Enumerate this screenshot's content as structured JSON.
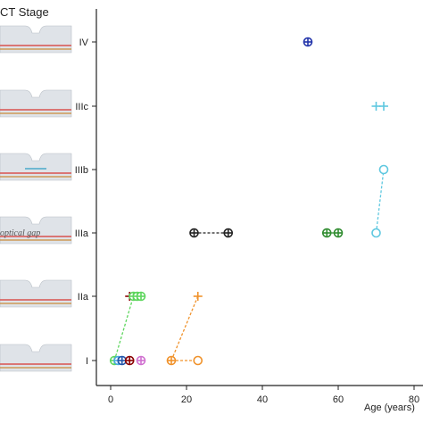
{
  "legend_title": "CT Stage",
  "optical_gap_label": "optical gap",
  "thumbnail_stages": [
    "IV",
    "IIIc",
    "IIIb",
    "IIIa",
    "IIa",
    "I"
  ],
  "colors": {
    "axis": "#222222",
    "thumb_fill": "#dfe3e8",
    "thumb_red": "#d9534f",
    "thumb_orange": "#c98a3a",
    "thumb_blue": "#4aa9c9"
  },
  "chart_data": {
    "type": "scatter",
    "xlabel": "Age (years)",
    "ylabel": "",
    "xlim": [
      -3,
      82
    ],
    "x_ticks": [
      0,
      20,
      40,
      60,
      80
    ],
    "y_categories": [
      "I",
      "IIa",
      "IIIa",
      "IIIb",
      "IIIc",
      "IV"
    ],
    "grid": false,
    "points": [
      {
        "x": 52,
        "y": "IV",
        "color": "#2233aa",
        "marker": "circle-plus"
      },
      {
        "x": 70,
        "y": "IIIc",
        "color": "#5fc8e0",
        "marker": "plus"
      },
      {
        "x": 72,
        "y": "IIIc",
        "color": "#5fc8e0",
        "marker": "plus"
      },
      {
        "x": 72,
        "y": "IIIb",
        "color": "#5fc8e0",
        "marker": "circle"
      },
      {
        "x": 70,
        "y": "IIIa",
        "color": "#5fc8e0",
        "marker": "circle"
      },
      {
        "x": 22,
        "y": "IIIa",
        "color": "#222222",
        "marker": "circle-plus"
      },
      {
        "x": 31,
        "y": "IIIa",
        "color": "#222222",
        "marker": "circle-plus"
      },
      {
        "x": 57,
        "y": "IIIa",
        "color": "#2e8b2e",
        "marker": "circle-plus"
      },
      {
        "x": 60,
        "y": "IIIa",
        "color": "#2e8b2e",
        "marker": "circle-plus"
      },
      {
        "x": 5,
        "y": "IIa",
        "color": "#8b0000",
        "marker": "plus"
      },
      {
        "x": 6,
        "y": "IIa",
        "color": "#5ed65e",
        "marker": "circle-plus"
      },
      {
        "x": 7,
        "y": "IIa",
        "color": "#5ed65e",
        "marker": "circle-plus"
      },
      {
        "x": 8,
        "y": "IIa",
        "color": "#5ed65e",
        "marker": "circle-plus"
      },
      {
        "x": 23,
        "y": "IIa",
        "color": "#f0922b",
        "marker": "plus"
      },
      {
        "x": 1,
        "y": "I",
        "color": "#5ed65e",
        "marker": "circle-plus"
      },
      {
        "x": 2,
        "y": "I",
        "color": "#4aa9e0",
        "marker": "circle-plus"
      },
      {
        "x": 3,
        "y": "I",
        "color": "#2255aa",
        "marker": "circle-plus"
      },
      {
        "x": 5,
        "y": "I",
        "color": "#8b0000",
        "marker": "circle-plus"
      },
      {
        "x": 8,
        "y": "I",
        "color": "#d070d0",
        "marker": "circle-plus"
      },
      {
        "x": 16,
        "y": "I",
        "color": "#f0922b",
        "marker": "circle-plus"
      },
      {
        "x": 23,
        "y": "I",
        "color": "#f0922b",
        "marker": "circle"
      }
    ],
    "connections": [
      {
        "from": [
          22,
          "IIIa"
        ],
        "to": [
          31,
          "IIIa"
        ],
        "color": "#222222"
      },
      {
        "from": [
          57,
          "IIIa"
        ],
        "to": [
          60,
          "IIIa"
        ],
        "color": "#2e8b2e"
      },
      {
        "from": [
          70,
          "IIIa"
        ],
        "to": [
          72,
          "IIIb"
        ],
        "color": "#5fc8e0"
      },
      {
        "from": [
          1,
          "I"
        ],
        "to": [
          6,
          "IIa"
        ],
        "color": "#5ed65e"
      },
      {
        "from": [
          16,
          "I"
        ],
        "to": [
          23,
          "IIa"
        ],
        "color": "#f0922b"
      },
      {
        "from": [
          16,
          "I"
        ],
        "to": [
          23,
          "I"
        ],
        "color": "#f0922b"
      }
    ]
  }
}
